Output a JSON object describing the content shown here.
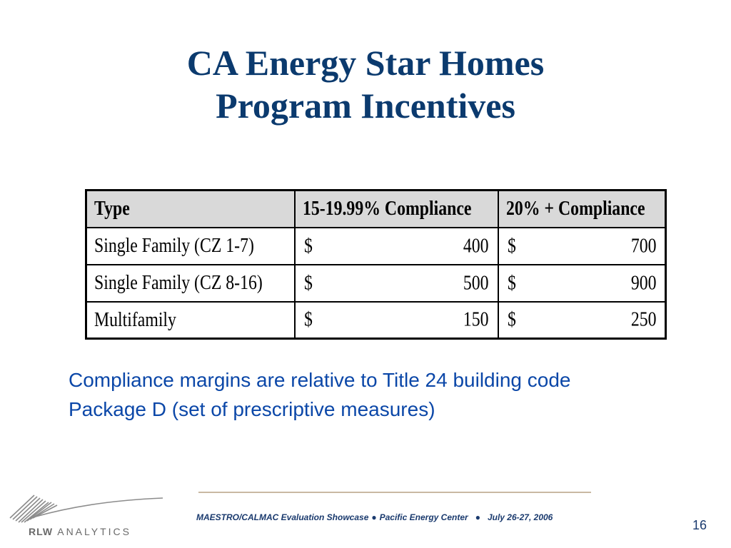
{
  "colors": {
    "title": "#0b3a6e",
    "note": "#0b47a8",
    "footer": "#1a3a6e",
    "header_fill": "#d9d9d9",
    "rule": "#c9b9a3"
  },
  "slide": {
    "title_line1": "CA Energy Star Homes",
    "title_line2": "Program Incentives",
    "note": "Compliance margins are relative to Title 24 building code Package D (set of prescriptive measures)"
  },
  "table": {
    "headers": [
      "Type",
      "15-19.99% Compliance",
      "20% + Compliance"
    ],
    "rows": [
      {
        "type": "Single Family (CZ 1-7)",
        "c1_symbol": "$",
        "c1_value": "400",
        "c2_symbol": "$",
        "c2_value": "700"
      },
      {
        "type": "Single Family (CZ 8-16)",
        "c1_symbol": "$",
        "c1_value": "500",
        "c2_symbol": "$",
        "c2_value": "900"
      },
      {
        "type": "Multifamily",
        "c1_symbol": "$",
        "c1_value": "150",
        "c2_symbol": "$",
        "c2_value": "250"
      }
    ]
  },
  "footer": {
    "logo_text_bold": "RLW",
    "logo_text": "ANALYTICS",
    "event": "MAESTRO/CALMAC Evaluation Showcase",
    "venue": "Pacific Energy Center",
    "dates": "July 26-27, 2006",
    "separator": "●",
    "page_number": "16"
  }
}
